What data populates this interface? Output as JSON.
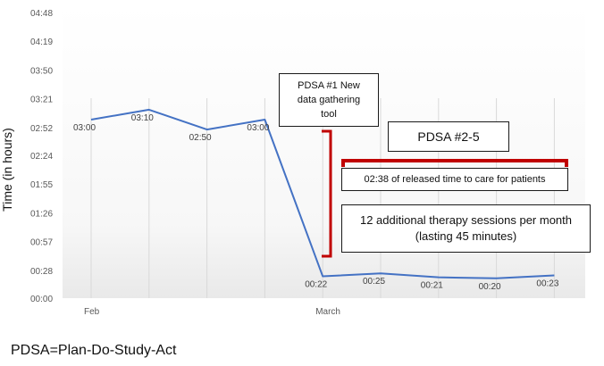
{
  "chart_data": {
    "type": "line",
    "ylabel": "Time (in hours)",
    "y_ticks": [
      "00:00",
      "00:28",
      "00:57",
      "01:26",
      "01:55",
      "02:24",
      "02:52",
      "03:21",
      "03:50",
      "04:19",
      "04:48"
    ],
    "y_tick_minutes": [
      0,
      28,
      57,
      86,
      115,
      144,
      172,
      201,
      230,
      259,
      288
    ],
    "ylim_minutes": [
      0,
      288
    ],
    "x_tick_labels": [
      {
        "label": "Feb",
        "at_index": 0
      },
      {
        "label": "March",
        "at_index": 4
      }
    ],
    "series": [
      {
        "name": "Time",
        "color": "#4472c4",
        "values_minutes": [
          180,
          190,
          170,
          180,
          22,
          25,
          21,
          20,
          23
        ],
        "data_labels": [
          "03:00",
          "03:10",
          "02:50",
          "03:00",
          "00:22",
          "00:25",
          "00:21",
          "00:20",
          "00:23"
        ]
      }
    ],
    "grid": "vertical"
  },
  "annotations": {
    "pdsa1": [
      "PDSA #1 New",
      "data gathering",
      "tool"
    ],
    "pdsa25": "PDSA #2-5",
    "released_time": "02:38 of released time to care for patients",
    "therapy": [
      "12 additional therapy sessions per month",
      "(lasting 45 minutes)"
    ],
    "bracket_color": "#c00000"
  },
  "footer": "PDSA=Plan-Do-Study-Act"
}
